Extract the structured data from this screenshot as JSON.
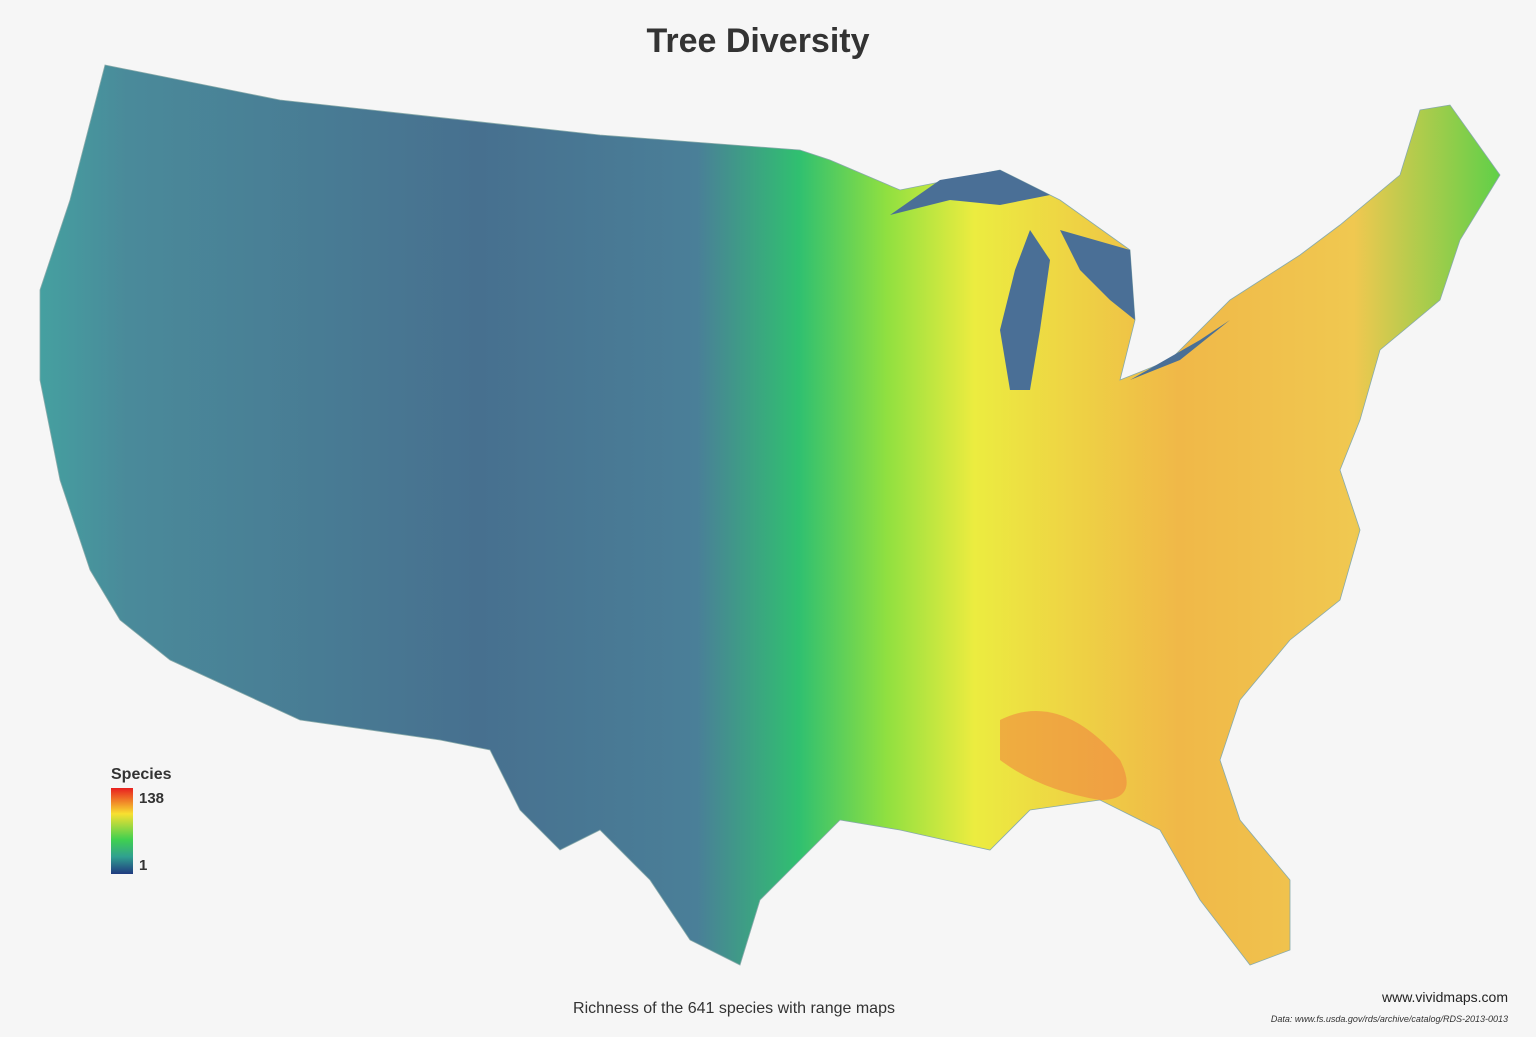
{
  "title": "Tree Diversity",
  "legend": {
    "title": "Species",
    "max": 138,
    "min": 1
  },
  "caption": "Richness of the 641 species with range maps",
  "credit": "www.vividmaps.com",
  "source": "Data: www.fs.usda.gov/rds/archive/catalog/RDS-2013-0013"
}
